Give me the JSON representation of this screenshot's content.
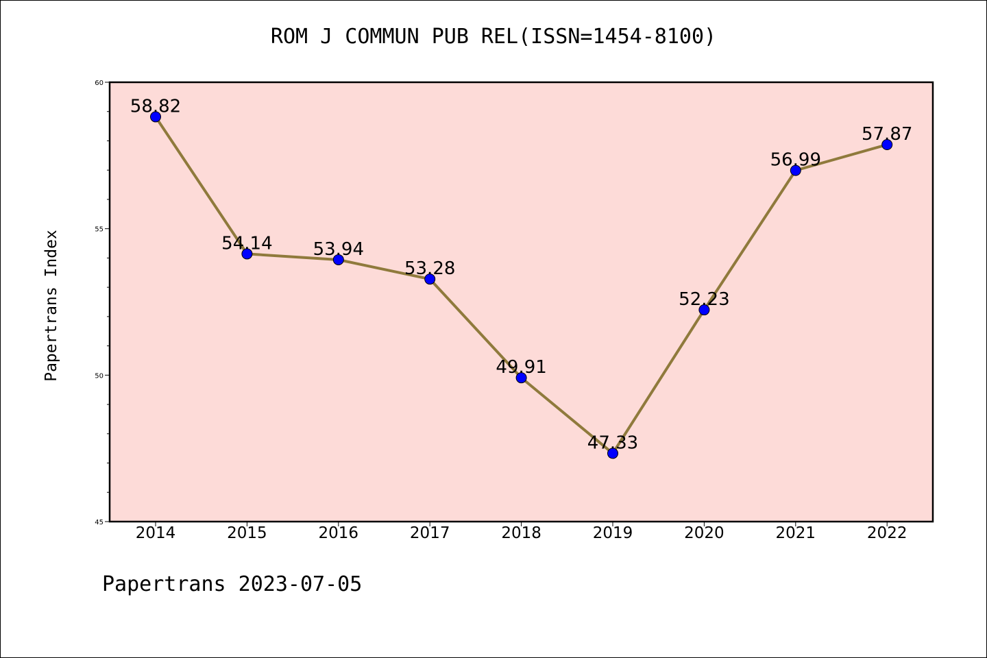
{
  "chart_data": {
    "type": "line",
    "title": "ROM J COMMUN PUB REL(ISSN=1454-8100)",
    "xlabel": "",
    "ylabel": "Papertrans Index",
    "x": [
      "2014",
      "2015",
      "2016",
      "2017",
      "2018",
      "2019",
      "2020",
      "2021",
      "2022"
    ],
    "series": [
      {
        "name": "Papertrans Index",
        "values": [
          58.82,
          54.14,
          53.94,
          53.28,
          49.91,
          47.33,
          52.23,
          56.99,
          57.87
        ],
        "labels": [
          "58.82",
          "54.14",
          "53.94",
          "53.28",
          "49.91",
          "47.33",
          "52.23",
          "56.99",
          "57.87"
        ]
      }
    ],
    "ylim": [
      45,
      60
    ],
    "yticks": [
      "45",
      "50",
      "55",
      "60"
    ],
    "grid": false,
    "colors": {
      "plot_background": "#fddbd8",
      "line": "#8f7a3c",
      "marker": "#0000ff"
    }
  },
  "footer": "Papertrans 2023-07-05"
}
